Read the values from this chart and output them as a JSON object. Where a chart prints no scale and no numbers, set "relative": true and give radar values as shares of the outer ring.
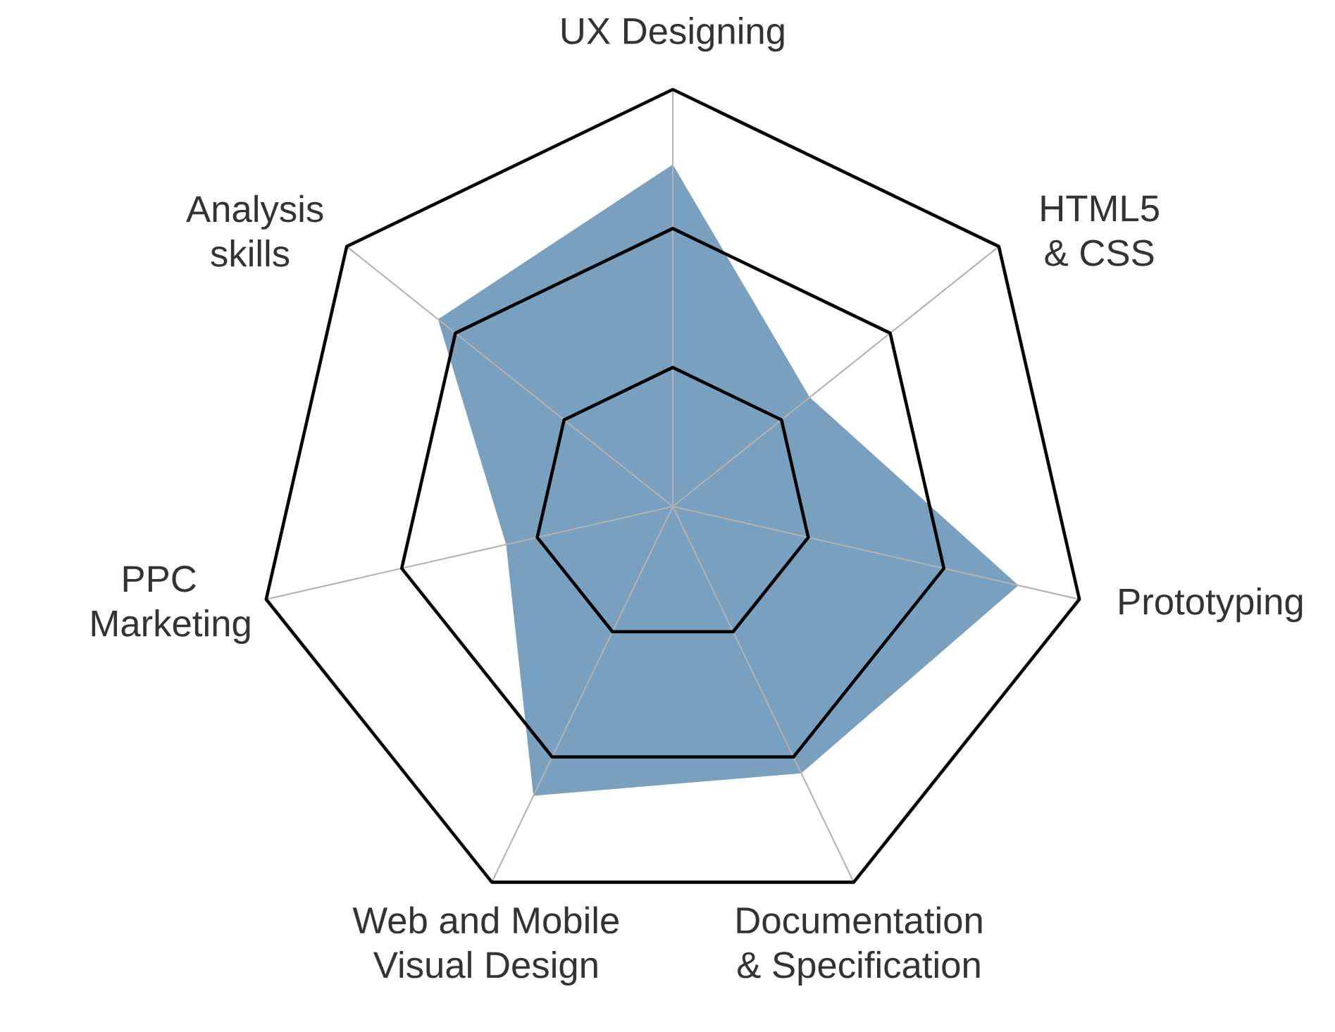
{
  "chart_data": {
    "type": "radar",
    "relative": true,
    "grid": true,
    "categories": [
      "UX Designing",
      "HTML5 & CSS",
      "Prototyping",
      "Documentation & Specification",
      "Web and Mobile Visual Design",
      "PPC Marketing",
      "Analysis skills"
    ],
    "series": [
      {
        "color": "#7aa0bf",
        "values": [
          0.82,
          0.42,
          0.85,
          0.71,
          0.77,
          0.41,
          0.72
        ]
      }
    ]
  }
}
